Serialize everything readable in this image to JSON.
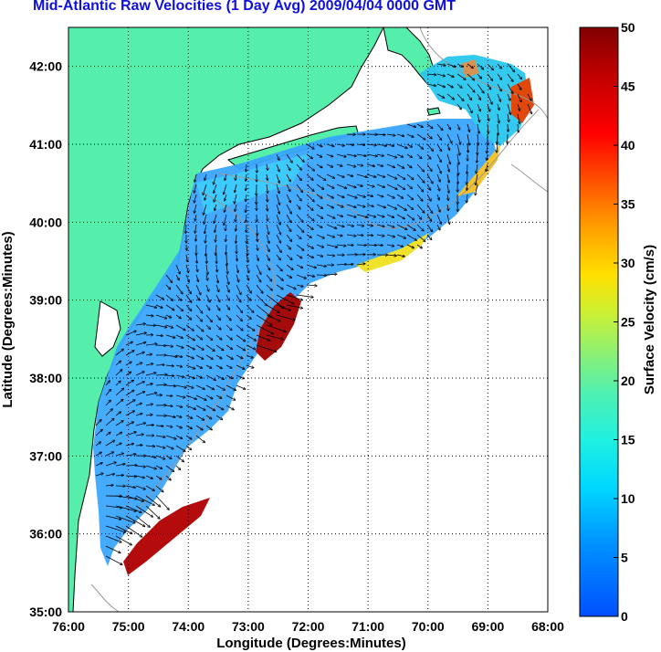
{
  "title": "Mid-Atlantic Raw Velocities (1 Day Avg) 2009/04/04 0000 GMT",
  "map": {
    "xlabel": "Longitude (Degrees:Minutes)",
    "ylabel": "Latitude (Degrees:Minutes)",
    "lon_range": [
      -76,
      -68
    ],
    "lat_range": [
      35,
      42.5
    ],
    "lon_ticks": [
      "76:00",
      "75:00",
      "74:00",
      "73:00",
      "72:00",
      "71:00",
      "70:00",
      "69:00",
      "68:00"
    ],
    "lat_ticks": [
      "35:00",
      "36:00",
      "37:00",
      "38:00",
      "39:00",
      "40:00",
      "41:00",
      "42:00"
    ],
    "grid": true,
    "land_color": "#55eeaa",
    "coast_color": "#000000"
  },
  "colorbar": {
    "label": "Surface Velocity (cm/s)",
    "range": [
      0,
      50
    ],
    "ticks": [
      "0",
      "5",
      "10",
      "15",
      "20",
      "25",
      "30",
      "35",
      "40",
      "45",
      "50"
    ],
    "colormap": "jet"
  }
}
